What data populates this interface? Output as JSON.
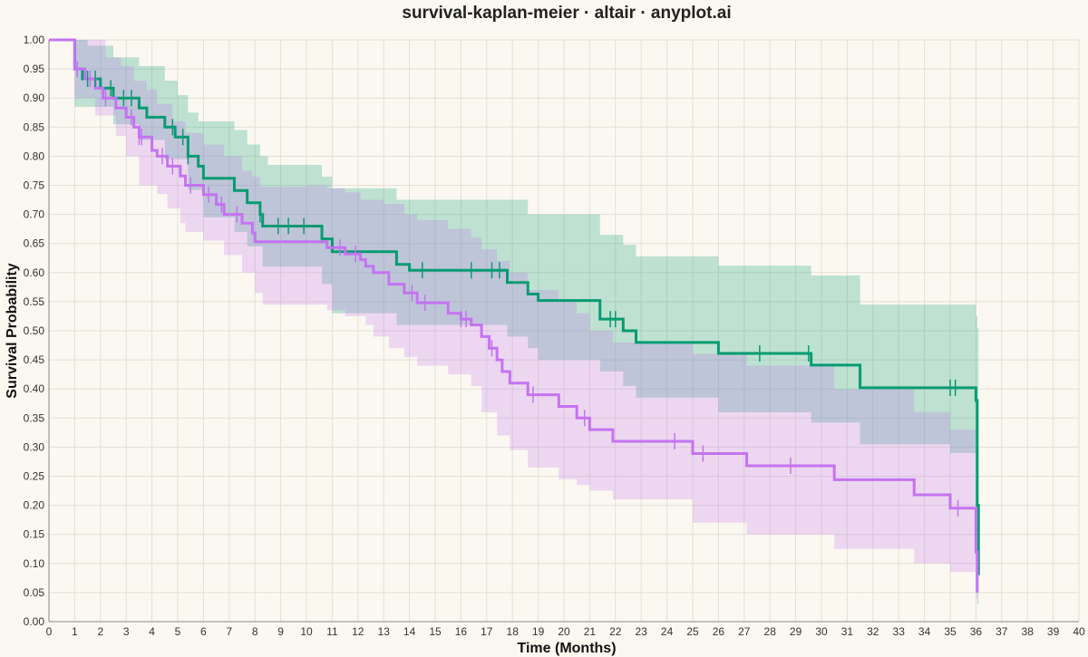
{
  "chart_data": {
    "type": "line",
    "subtype": "kaplan-meier-step",
    "title": "survival-kaplan-meier · altair · anyplot.ai",
    "xlabel": "Time (Months)",
    "ylabel": "Survival Probability",
    "xlim": [
      0,
      40
    ],
    "ylim": [
      0,
      1
    ],
    "x_ticks": [
      0,
      1,
      2,
      3,
      4,
      5,
      6,
      7,
      8,
      9,
      10,
      11,
      12,
      13,
      14,
      15,
      16,
      17,
      18,
      19,
      20,
      21,
      22,
      23,
      24,
      25,
      26,
      27,
      28,
      29,
      30,
      31,
      32,
      33,
      34,
      35,
      36,
      37,
      38,
      39,
      40
    ],
    "y_ticks": [
      0,
      0.05,
      0.1,
      0.15,
      0.2,
      0.25,
      0.3,
      0.35,
      0.4,
      0.45,
      0.5,
      0.55,
      0.6,
      0.65,
      0.7,
      0.75,
      0.8,
      0.85,
      0.9,
      0.95,
      1.0
    ],
    "grid": true,
    "legend": "none",
    "series": [
      {
        "color": "#079B72",
        "band_color": "#079B72",
        "steps": [
          [
            0,
            1.0
          ],
          [
            1.0,
            0.95
          ],
          [
            1.3,
            0.933
          ],
          [
            2.0,
            0.917
          ],
          [
            2.5,
            0.9
          ],
          [
            3.5,
            0.883
          ],
          [
            3.8,
            0.867
          ],
          [
            4.5,
            0.85
          ],
          [
            4.9,
            0.833
          ],
          [
            5.4,
            0.8
          ],
          [
            5.8,
            0.783
          ],
          [
            6.0,
            0.762
          ],
          [
            7.2,
            0.741
          ],
          [
            7.7,
            0.72
          ],
          [
            8.2,
            0.7
          ],
          [
            8.3,
            0.68
          ],
          [
            10.6,
            0.658
          ],
          [
            11.0,
            0.636
          ],
          [
            13.5,
            0.614
          ],
          [
            14.0,
            0.604
          ],
          [
            17.8,
            0.583
          ],
          [
            18.6,
            0.563
          ],
          [
            19.0,
            0.552
          ],
          [
            21.4,
            0.52
          ],
          [
            22.3,
            0.5
          ],
          [
            22.8,
            0.48
          ],
          [
            26.0,
            0.461
          ],
          [
            29.6,
            0.441
          ],
          [
            31.5,
            0.402
          ],
          [
            36.0,
            0.38
          ],
          [
            36.05,
            0.2
          ],
          [
            36.1,
            0.08
          ]
        ],
        "ci_upper": [
          [
            0,
            1.0
          ],
          [
            1.0,
            1.0
          ],
          [
            1.5,
            0.99
          ],
          [
            2.5,
            0.97
          ],
          [
            3.5,
            0.955
          ],
          [
            4.5,
            0.93
          ],
          [
            5.0,
            0.905
          ],
          [
            5.4,
            0.875
          ],
          [
            5.8,
            0.86
          ],
          [
            7.2,
            0.845
          ],
          [
            7.7,
            0.82
          ],
          [
            8.2,
            0.8
          ],
          [
            8.5,
            0.785
          ],
          [
            10.6,
            0.765
          ],
          [
            11.0,
            0.745
          ],
          [
            13.5,
            0.725
          ],
          [
            18.6,
            0.7
          ],
          [
            21.4,
            0.665
          ],
          [
            22.3,
            0.648
          ],
          [
            22.8,
            0.628
          ],
          [
            26.0,
            0.612
          ],
          [
            29.6,
            0.595
          ],
          [
            31.5,
            0.545
          ],
          [
            36.0,
            0.525
          ],
          [
            36.05,
            0.505
          ],
          [
            36.1,
            0.505
          ]
        ],
        "ci_lower": [
          [
            0,
            1.0
          ],
          [
            1.0,
            0.885
          ],
          [
            2.5,
            0.855
          ],
          [
            3.5,
            0.828
          ],
          [
            4.5,
            0.795
          ],
          [
            5.4,
            0.742
          ],
          [
            6.0,
            0.695
          ],
          [
            7.2,
            0.67
          ],
          [
            7.7,
            0.645
          ],
          [
            8.3,
            0.61
          ],
          [
            10.6,
            0.58
          ],
          [
            11.0,
            0.53
          ],
          [
            13.5,
            0.51
          ],
          [
            17.8,
            0.49
          ],
          [
            18.6,
            0.47
          ],
          [
            19.0,
            0.45
          ],
          [
            21.4,
            0.43
          ],
          [
            22.3,
            0.405
          ],
          [
            22.8,
            0.385
          ],
          [
            26.0,
            0.36
          ],
          [
            29.6,
            0.342
          ],
          [
            31.5,
            0.305
          ],
          [
            35.0,
            0.29
          ],
          [
            36.0,
            0.255
          ],
          [
            36.05,
            0.03
          ],
          [
            36.1,
            0.03
          ]
        ],
        "censored_x": [
          1.5,
          1.8,
          2.4,
          2.9,
          3.2,
          4.8,
          5.2,
          5.4,
          8.2,
          8.9,
          9.3,
          9.9,
          14.5,
          16.4,
          17.2,
          17.5,
          21.8,
          22.0,
          27.6,
          29.5,
          35.0,
          35.2
        ]
      },
      {
        "color": "#C473F1",
        "band_color": "#C473F1",
        "steps": [
          [
            0,
            1.0
          ],
          [
            1.0,
            0.95
          ],
          [
            1.4,
            0.933
          ],
          [
            1.8,
            0.917
          ],
          [
            2.1,
            0.9
          ],
          [
            2.6,
            0.883
          ],
          [
            3.0,
            0.867
          ],
          [
            3.3,
            0.85
          ],
          [
            3.5,
            0.833
          ],
          [
            4.0,
            0.81
          ],
          [
            4.2,
            0.8
          ],
          [
            4.6,
            0.783
          ],
          [
            5.1,
            0.766
          ],
          [
            5.3,
            0.75
          ],
          [
            6.0,
            0.734
          ],
          [
            6.5,
            0.717
          ],
          [
            6.8,
            0.7
          ],
          [
            7.5,
            0.685
          ],
          [
            7.9,
            0.668
          ],
          [
            8.0,
            0.653
          ],
          [
            10.8,
            0.643
          ],
          [
            11.5,
            0.632
          ],
          [
            12.1,
            0.622
          ],
          [
            12.3,
            0.611
          ],
          [
            12.6,
            0.6
          ],
          [
            13.2,
            0.58
          ],
          [
            13.8,
            0.565
          ],
          [
            14.3,
            0.548
          ],
          [
            15.5,
            0.53
          ],
          [
            16.0,
            0.52
          ],
          [
            16.4,
            0.51
          ],
          [
            16.8,
            0.49
          ],
          [
            17.1,
            0.47
          ],
          [
            17.4,
            0.45
          ],
          [
            17.6,
            0.43
          ],
          [
            17.9,
            0.41
          ],
          [
            18.6,
            0.39
          ],
          [
            19.8,
            0.37
          ],
          [
            20.5,
            0.35
          ],
          [
            21.0,
            0.33
          ],
          [
            21.9,
            0.31
          ],
          [
            25.0,
            0.289
          ],
          [
            27.1,
            0.268
          ],
          [
            30.5,
            0.244
          ],
          [
            33.6,
            0.218
          ],
          [
            35.0,
            0.195
          ],
          [
            36.0,
            0.12
          ],
          [
            36.05,
            0.05
          ]
        ],
        "ci_upper": [
          [
            0,
            1.0
          ],
          [
            1.0,
            1.0
          ],
          [
            2.2,
            0.97
          ],
          [
            2.8,
            0.955
          ],
          [
            3.3,
            0.93
          ],
          [
            3.8,
            0.915
          ],
          [
            4.2,
            0.89
          ],
          [
            4.8,
            0.86
          ],
          [
            5.3,
            0.84
          ],
          [
            6.0,
            0.82
          ],
          [
            6.8,
            0.8
          ],
          [
            7.5,
            0.775
          ],
          [
            7.9,
            0.765
          ],
          [
            8.2,
            0.748
          ],
          [
            10.0,
            0.75
          ],
          [
            10.8,
            0.745
          ],
          [
            11.5,
            0.738
          ],
          [
            12.1,
            0.725
          ],
          [
            13.0,
            0.718
          ],
          [
            13.8,
            0.7
          ],
          [
            14.3,
            0.69
          ],
          [
            15.5,
            0.675
          ],
          [
            16.4,
            0.66
          ],
          [
            16.8,
            0.64
          ],
          [
            17.4,
            0.62
          ],
          [
            17.9,
            0.6
          ],
          [
            18.6,
            0.57
          ],
          [
            19.8,
            0.55
          ],
          [
            20.5,
            0.53
          ],
          [
            21.0,
            0.5
          ],
          [
            21.9,
            0.48
          ],
          [
            25.0,
            0.46
          ],
          [
            27.1,
            0.44
          ],
          [
            30.5,
            0.4
          ],
          [
            33.6,
            0.36
          ],
          [
            35.0,
            0.33
          ],
          [
            36.0,
            0.3
          ],
          [
            36.05,
            0.28
          ]
        ],
        "ci_lower": [
          [
            0,
            1.0
          ],
          [
            1.0,
            0.9
          ],
          [
            1.8,
            0.87
          ],
          [
            2.6,
            0.835
          ],
          [
            3.0,
            0.8
          ],
          [
            3.5,
            0.75
          ],
          [
            4.2,
            0.735
          ],
          [
            4.6,
            0.71
          ],
          [
            5.1,
            0.685
          ],
          [
            5.3,
            0.67
          ],
          [
            6.0,
            0.655
          ],
          [
            6.8,
            0.63
          ],
          [
            7.5,
            0.6
          ],
          [
            8.0,
            0.565
          ],
          [
            8.3,
            0.545
          ],
          [
            10.8,
            0.535
          ],
          [
            11.5,
            0.525
          ],
          [
            12.3,
            0.51
          ],
          [
            12.6,
            0.49
          ],
          [
            13.2,
            0.47
          ],
          [
            13.8,
            0.455
          ],
          [
            14.3,
            0.44
          ],
          [
            15.5,
            0.425
          ],
          [
            16.4,
            0.405
          ],
          [
            16.8,
            0.36
          ],
          [
            17.4,
            0.32
          ],
          [
            17.9,
            0.295
          ],
          [
            18.6,
            0.265
          ],
          [
            19.8,
            0.245
          ],
          [
            20.5,
            0.235
          ],
          [
            21.0,
            0.225
          ],
          [
            21.9,
            0.21
          ],
          [
            25.0,
            0.17
          ],
          [
            27.1,
            0.15
          ],
          [
            30.5,
            0.125
          ],
          [
            33.6,
            0.1
          ],
          [
            35.0,
            0.085
          ],
          [
            36.0,
            0.04
          ],
          [
            36.05,
            0.04
          ]
        ],
        "censored_x": [
          1.1,
          1.6,
          2.2,
          3.2,
          3.5,
          3.6,
          4.4,
          4.8,
          5.5,
          6.2,
          6.7,
          7.3,
          11.3,
          11.9,
          14.1,
          14.6,
          16.0,
          16.2,
          17.2,
          18.8,
          20.8,
          24.3,
          25.4,
          28.8,
          35.3
        ]
      }
    ]
  }
}
